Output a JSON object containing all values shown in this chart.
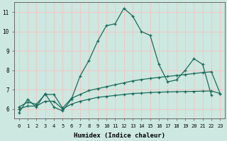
{
  "xlabel": "Humidex (Indice chaleur)",
  "background_color": "#cde8e0",
  "grid_color": "#f0c8c8",
  "line_color": "#1a6b5a",
  "xlim": [
    -0.5,
    23.5
  ],
  "ylim": [
    5.5,
    11.5
  ],
  "xticks": [
    0,
    1,
    2,
    3,
    4,
    5,
    6,
    7,
    8,
    9,
    10,
    11,
    12,
    13,
    14,
    15,
    16,
    17,
    18,
    19,
    20,
    21,
    22,
    23
  ],
  "yticks": [
    6,
    7,
    8,
    9,
    10,
    11
  ],
  "line1_x": [
    0,
    1,
    2,
    3,
    4,
    5,
    6,
    7,
    8,
    9,
    10,
    11,
    12,
    13,
    14,
    15,
    16,
    17,
    18,
    19,
    20,
    21,
    22
  ],
  "line1_y": [
    5.8,
    6.5,
    6.1,
    6.8,
    6.1,
    5.9,
    6.5,
    7.7,
    8.5,
    9.5,
    10.3,
    10.4,
    11.2,
    10.8,
    10.0,
    9.8,
    8.3,
    7.4,
    7.5,
    8.0,
    8.6,
    8.3,
    6.7
  ],
  "line2_x": [
    0,
    1,
    2,
    3,
    4,
    5,
    6,
    7,
    8,
    9,
    10,
    11,
    12,
    13,
    14,
    15,
    16,
    17,
    18,
    19,
    20,
    21,
    22,
    23
  ],
  "line2_y": [
    6.1,
    6.35,
    6.25,
    6.75,
    6.75,
    6.05,
    6.55,
    6.75,
    6.95,
    7.05,
    7.15,
    7.25,
    7.35,
    7.45,
    7.52,
    7.58,
    7.63,
    7.68,
    7.73,
    7.78,
    7.83,
    7.88,
    7.92,
    6.8
  ],
  "line3_x": [
    0,
    1,
    2,
    3,
    4,
    5,
    6,
    7,
    8,
    9,
    10,
    11,
    12,
    13,
    14,
    15,
    16,
    17,
    18,
    19,
    20,
    21,
    22,
    23
  ],
  "line3_y": [
    6.0,
    6.15,
    6.15,
    6.4,
    6.4,
    6.0,
    6.25,
    6.4,
    6.5,
    6.6,
    6.65,
    6.7,
    6.75,
    6.8,
    6.82,
    6.85,
    6.87,
    6.88,
    6.89,
    6.9,
    6.91,
    6.92,
    6.93,
    6.8
  ]
}
